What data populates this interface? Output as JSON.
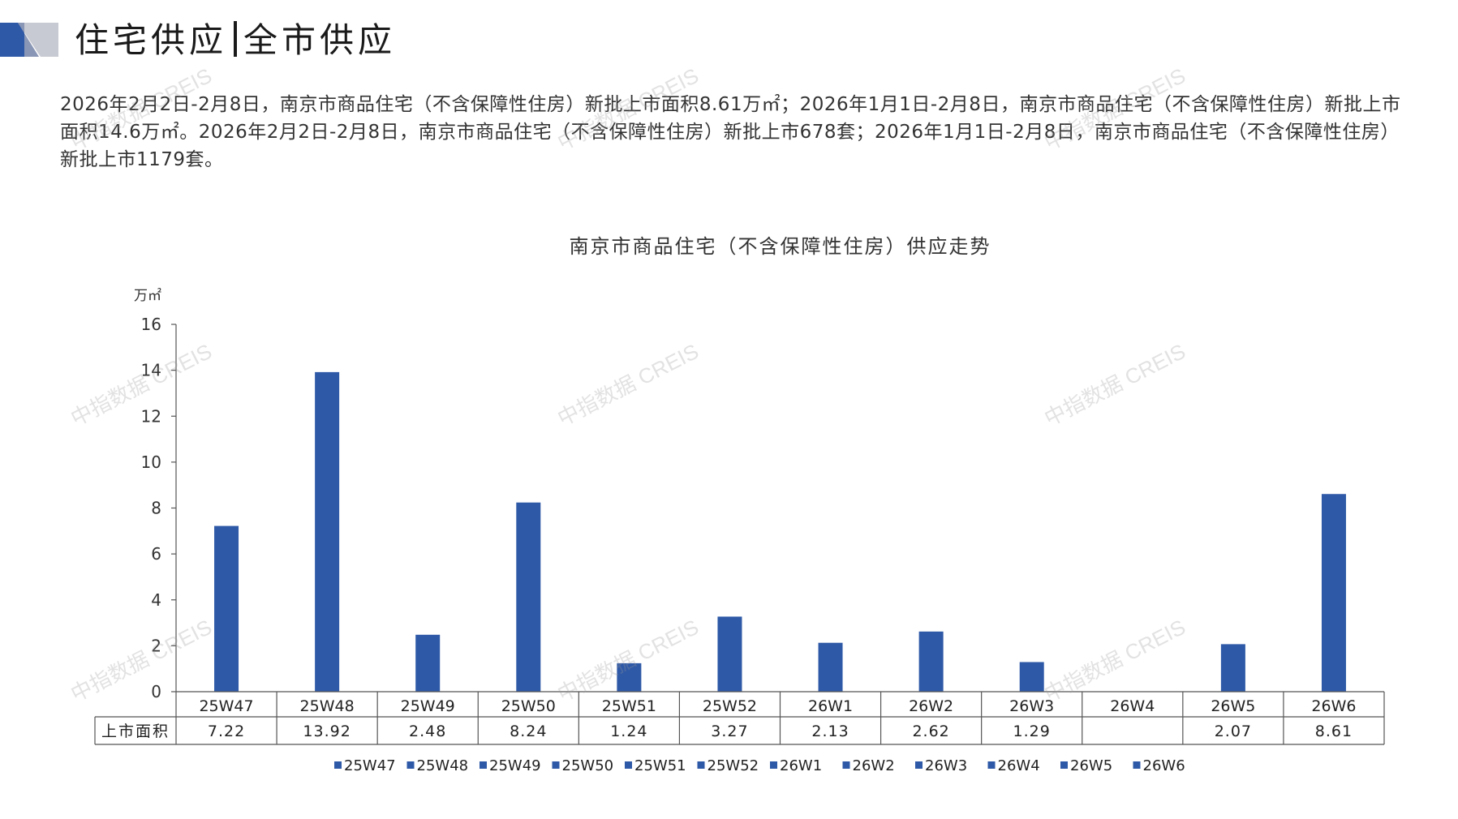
{
  "header": {
    "title_left": "住宅供应",
    "title_right": "全市供应"
  },
  "summary": "2026年2月2日-2月8日，南京市商品住宅（不含保障性住房）新批上市面积8.61万㎡；2026年1月1日-2月8日，南京市商品住宅（不含保障性住房）新批上市面积14.6万㎡。2026年2月2日-2月8日，南京市商品住宅（不含保障性住房）新批上市678套；2026年1月1日-2月8日，南京市商品住宅（不含保障性住房）新批上市1179套。",
  "watermark": "中指数据 CREIS",
  "colors": {
    "bar": "#2E59A7",
    "deco_dark": "#2E59A7",
    "deco_light": "#c7cad2"
  },
  "chart_data": {
    "type": "bar",
    "title": "南京市商品住宅（不含保障性住房）供应走势",
    "ylabel": "万㎡",
    "ylim": [
      0,
      16
    ],
    "yticks": [
      0,
      2,
      4,
      6,
      8,
      10,
      12,
      14,
      16
    ],
    "categories": [
      "25W47",
      "25W48",
      "25W49",
      "25W50",
      "25W51",
      "25W52",
      "26W1",
      "26W2",
      "26W3",
      "26W4",
      "26W5",
      "26W6"
    ],
    "series": [
      {
        "name": "上市面积",
        "values": [
          7.22,
          13.92,
          2.48,
          8.24,
          1.24,
          3.27,
          2.13,
          2.62,
          1.29,
          null,
          2.07,
          8.61
        ]
      }
    ],
    "data_table": {
      "row_label": "上市面积",
      "cells": [
        "7.22",
        "13.92",
        "2.48",
        "8.24",
        "1.24",
        "3.27",
        "2.13",
        "2.62",
        "1.29",
        "",
        "2.07",
        "8.61"
      ]
    },
    "legend": {
      "position": "bottom",
      "entries": [
        "25W47",
        "25W48",
        "25W49",
        "25W50",
        "25W51",
        "25W52",
        "26W1",
        "26W2",
        "26W3",
        "26W4",
        "26W5",
        "26W6"
      ]
    },
    "grid": false
  }
}
